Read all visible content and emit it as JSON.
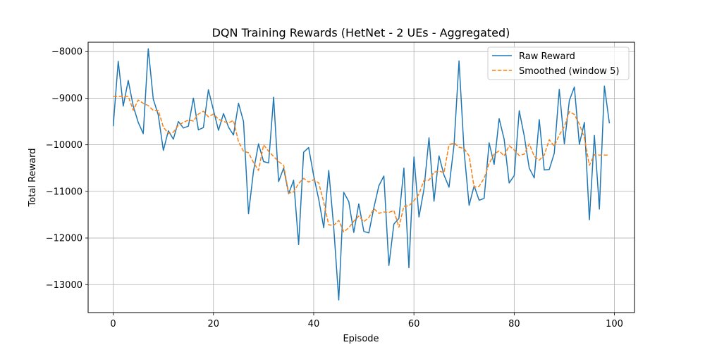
{
  "chart_data": {
    "type": "line",
    "title": "DQN Training Rewards (HetNet - 2 UEs - Aggregated)",
    "xlabel": "Episode",
    "ylabel": "Total Reward",
    "xlim": [
      -5,
      104
    ],
    "ylim": [
      -13600,
      -7800
    ],
    "xticks": [
      0,
      20,
      40,
      60,
      80,
      100
    ],
    "yticks": [
      -13000,
      -12000,
      -11000,
      -10000,
      -9000,
      -8000
    ],
    "xtick_labels": [
      "0",
      "20",
      "40",
      "60",
      "80",
      "100"
    ],
    "ytick_labels": [
      "−13000",
      "−12000",
      "−11000",
      "−10000",
      "−9000",
      "−8000"
    ],
    "grid": true,
    "legend_position": "top-right",
    "series": [
      {
        "name": "Raw Reward",
        "color": "#1f77b4",
        "style": "solid",
        "x": [
          0,
          1,
          2,
          3,
          4,
          5,
          6,
          7,
          8,
          9,
          10,
          11,
          12,
          13,
          14,
          15,
          16,
          17,
          18,
          19,
          20,
          21,
          22,
          23,
          24,
          25,
          26,
          27,
          28,
          29,
          30,
          31,
          32,
          33,
          34,
          35,
          36,
          37,
          38,
          39,
          40,
          41,
          42,
          43,
          44,
          45,
          46,
          47,
          48,
          49,
          50,
          51,
          52,
          53,
          54,
          55,
          56,
          57,
          58,
          59,
          60,
          61,
          62,
          63,
          64,
          65,
          66,
          67,
          68,
          69,
          70,
          71,
          72,
          73,
          74,
          75,
          76,
          77,
          78,
          79,
          80,
          81,
          82,
          83,
          84,
          85,
          86,
          87,
          88,
          89,
          90,
          91,
          92,
          93,
          94,
          95,
          96,
          97,
          98,
          99
        ],
        "values": [
          -9600,
          -8210,
          -9170,
          -8620,
          -9170,
          -9520,
          -9760,
          -7940,
          -9020,
          -9360,
          -10120,
          -9700,
          -9880,
          -9500,
          -9640,
          -9600,
          -9000,
          -9680,
          -9630,
          -8820,
          -9260,
          -9690,
          -9330,
          -9620,
          -9790,
          -9110,
          -9500,
          -11480,
          -10560,
          -9980,
          -10360,
          -10390,
          -8980,
          -10790,
          -10500,
          -11050,
          -10760,
          -12140,
          -10160,
          -10060,
          -10670,
          -11170,
          -11780,
          -10550,
          -11780,
          -13330,
          -11020,
          -11220,
          -11880,
          -11270,
          -11860,
          -11890,
          -11350,
          -10880,
          -10670,
          -12590,
          -11700,
          -11580,
          -10500,
          -12640,
          -10260,
          -11550,
          -10950,
          -9850,
          -11210,
          -10240,
          -10650,
          -10910,
          -10010,
          -8200,
          -10140,
          -11300,
          -10880,
          -11190,
          -11150,
          -9960,
          -10420,
          -9440,
          -9880,
          -10820,
          -10660,
          -9270,
          -9810,
          -10500,
          -10710,
          -9460,
          -10540,
          -10530,
          -10180,
          -8810,
          -9980,
          -9050,
          -8760,
          -9990,
          -9520,
          -11610,
          -9800,
          -11380,
          -8740,
          -9540
        ]
      },
      {
        "name": "Smoothed (window 5)",
        "color": "#ff7f0e",
        "style": "dashed",
        "x": [
          0,
          1,
          2,
          3,
          4,
          5,
          6,
          7,
          8,
          9,
          10,
          11,
          12,
          13,
          14,
          15,
          16,
          17,
          18,
          19,
          20,
          21,
          22,
          23,
          24,
          25,
          26,
          27,
          28,
          29,
          30,
          31,
          32,
          33,
          34,
          35,
          36,
          37,
          38,
          39,
          40,
          41,
          42,
          43,
          44,
          45,
          46,
          47,
          48,
          49,
          50,
          51,
          52,
          53,
          54,
          55,
          56,
          57,
          58,
          59,
          60,
          61,
          62,
          63,
          64,
          65,
          66,
          67,
          68,
          69,
          70,
          71,
          72,
          73,
          74,
          75,
          76,
          77,
          78,
          79,
          80,
          81,
          82,
          83,
          84,
          85,
          86,
          87,
          88,
          89,
          90,
          91,
          92,
          93,
          94,
          95,
          96,
          97,
          98,
          99
        ],
        "values": [
          -8960,
          -8960,
          -8960,
          -8960,
          -9260,
          -9040,
          -9110,
          -9160,
          -9260,
          -9260,
          -9620,
          -9760,
          -9730,
          -9580,
          -9520,
          -9470,
          -9490,
          -9340,
          -9280,
          -9400,
          -9340,
          -9450,
          -9500,
          -9530,
          -9480,
          -9930,
          -10140,
          -10170,
          -10380,
          -10550,
          -10000,
          -10140,
          -10250,
          -10360,
          -10440,
          -11040,
          -11010,
          -10830,
          -10720,
          -10800,
          -10750,
          -10820,
          -11230,
          -11720,
          -11730,
          -11620,
          -11870,
          -11780,
          -11640,
          -11530,
          -11650,
          -11560,
          -11370,
          -11470,
          -11440,
          -11450,
          -11410,
          -11770,
          -11320,
          -11310,
          -11200,
          -11060,
          -10760,
          -10760,
          -10590,
          -10560,
          -10600,
          -10000,
          -9960,
          -10050,
          -10080,
          -10240,
          -10910,
          -10890,
          -10720,
          -10400,
          -10200,
          -10130,
          -10240,
          -10020,
          -10110,
          -10230,
          -10200,
          -9980,
          -10250,
          -10330,
          -10220,
          -9890,
          -10030,
          -9790,
          -9610,
          -9290,
          -9350,
          -9560,
          -9850,
          -10440,
          -10210,
          -10220,
          -10220,
          -10220
        ]
      }
    ]
  }
}
